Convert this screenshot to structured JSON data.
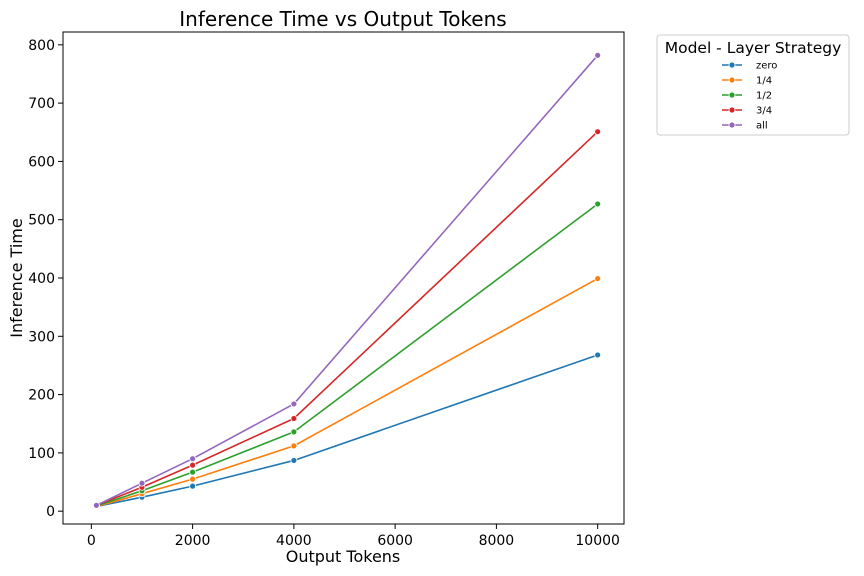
{
  "chart_data": {
    "type": "line",
    "title": "Inference Time vs Output Tokens",
    "xlabel": "Output Tokens",
    "ylabel": "Inference Time",
    "xlim": [
      -560,
      10520
    ],
    "ylim": [
      -22,
      822
    ],
    "x_ticks": [
      0,
      2000,
      4000,
      6000,
      8000,
      10000
    ],
    "y_ticks": [
      0,
      100,
      200,
      300,
      400,
      500,
      600,
      700,
      800
    ],
    "x_tick_labels": [
      "0",
      "2000",
      "4000",
      "6000",
      "8000",
      "10000"
    ],
    "y_tick_labels": [
      "0",
      "100",
      "200",
      "300",
      "400",
      "500",
      "600",
      "700",
      "800"
    ],
    "grid": false,
    "legend": {
      "title": "Model - Layer Strategy",
      "placement": "outside-top-right"
    },
    "x": [
      100,
      1000,
      2000,
      4000,
      10000
    ],
    "series": [
      {
        "name": "zero",
        "color": "#1f77b4",
        "values": [
          8,
          24,
          43,
          87,
          268
        ]
      },
      {
        "name": "1/4",
        "color": "#ff7f0e",
        "values": [
          8,
          30,
          55,
          112,
          399
        ]
      },
      {
        "name": "1/2",
        "color": "#2ca02c",
        "values": [
          9,
          35,
          67,
          136,
          527
        ]
      },
      {
        "name": "3/4",
        "color": "#d62728",
        "values": [
          10,
          41,
          79,
          159,
          651
        ]
      },
      {
        "name": "all",
        "color": "#9467bd",
        "values": [
          10,
          48,
          90,
          184,
          782
        ]
      }
    ]
  }
}
